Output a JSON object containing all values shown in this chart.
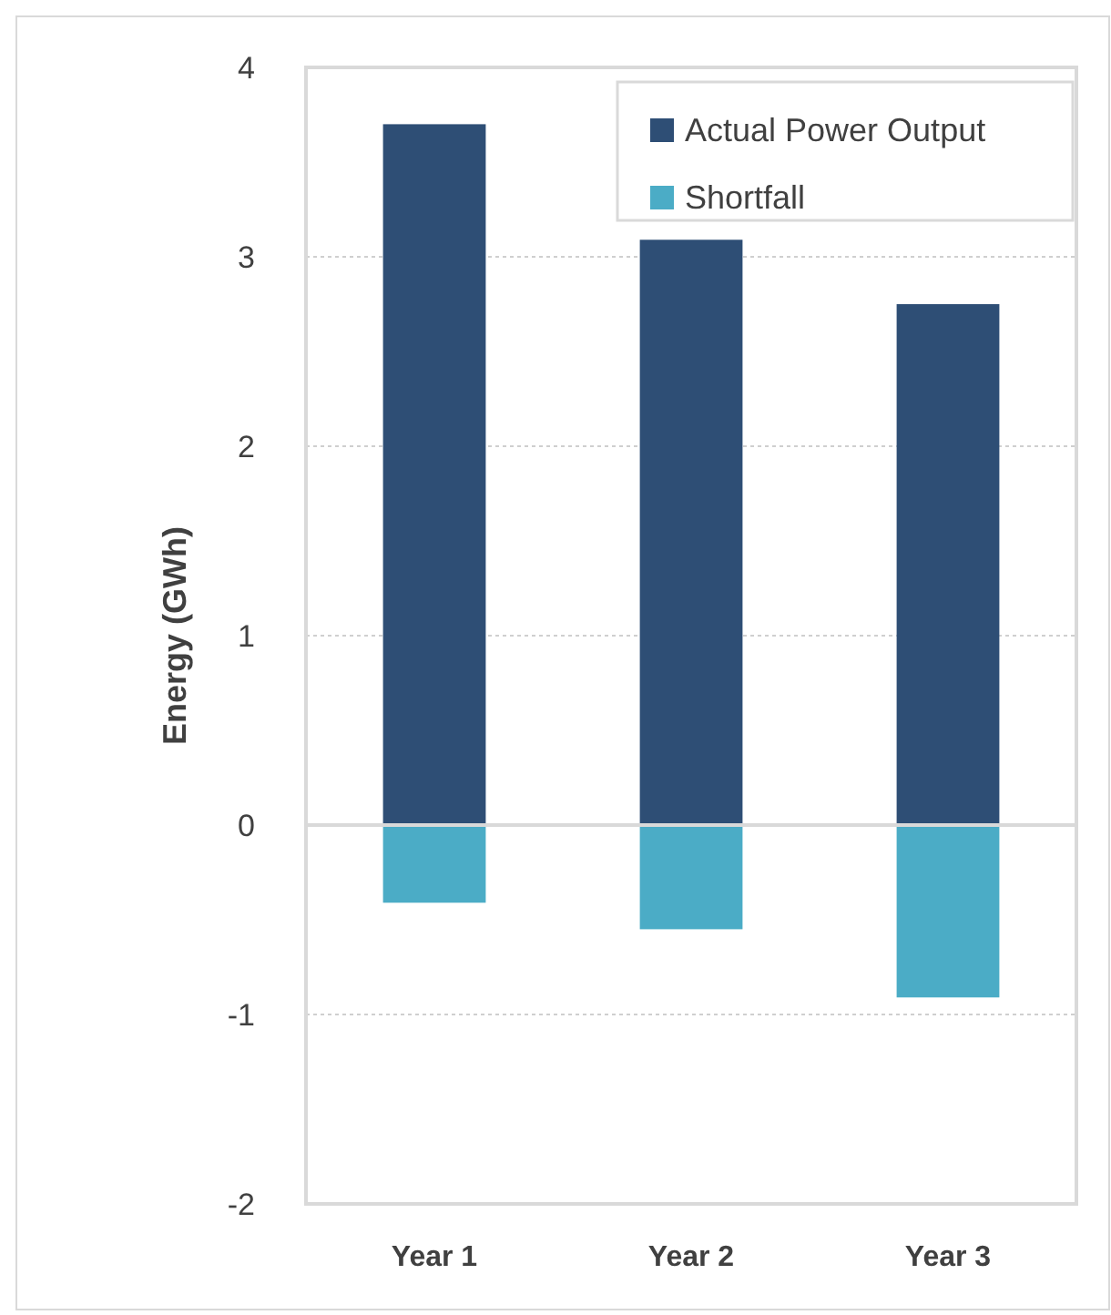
{
  "chart_data": {
    "type": "bar",
    "ylabel": "Energy (GWh)",
    "categories": [
      "Year 1",
      "Year 2",
      "Year 3"
    ],
    "stacked": true,
    "series": [
      {
        "name": "Actual Power Output",
        "color": "#2e4e75",
        "values": [
          3.7,
          3.09,
          2.75
        ]
      },
      {
        "name": "Shortfall",
        "color": "#4bacc6",
        "values": [
          -0.41,
          -0.55,
          -0.91
        ]
      }
    ],
    "ylim": [
      -2,
      4
    ],
    "yticks": [
      -2,
      -1,
      0,
      1,
      2,
      3,
      4
    ],
    "grid": "y",
    "legend": "top right"
  }
}
